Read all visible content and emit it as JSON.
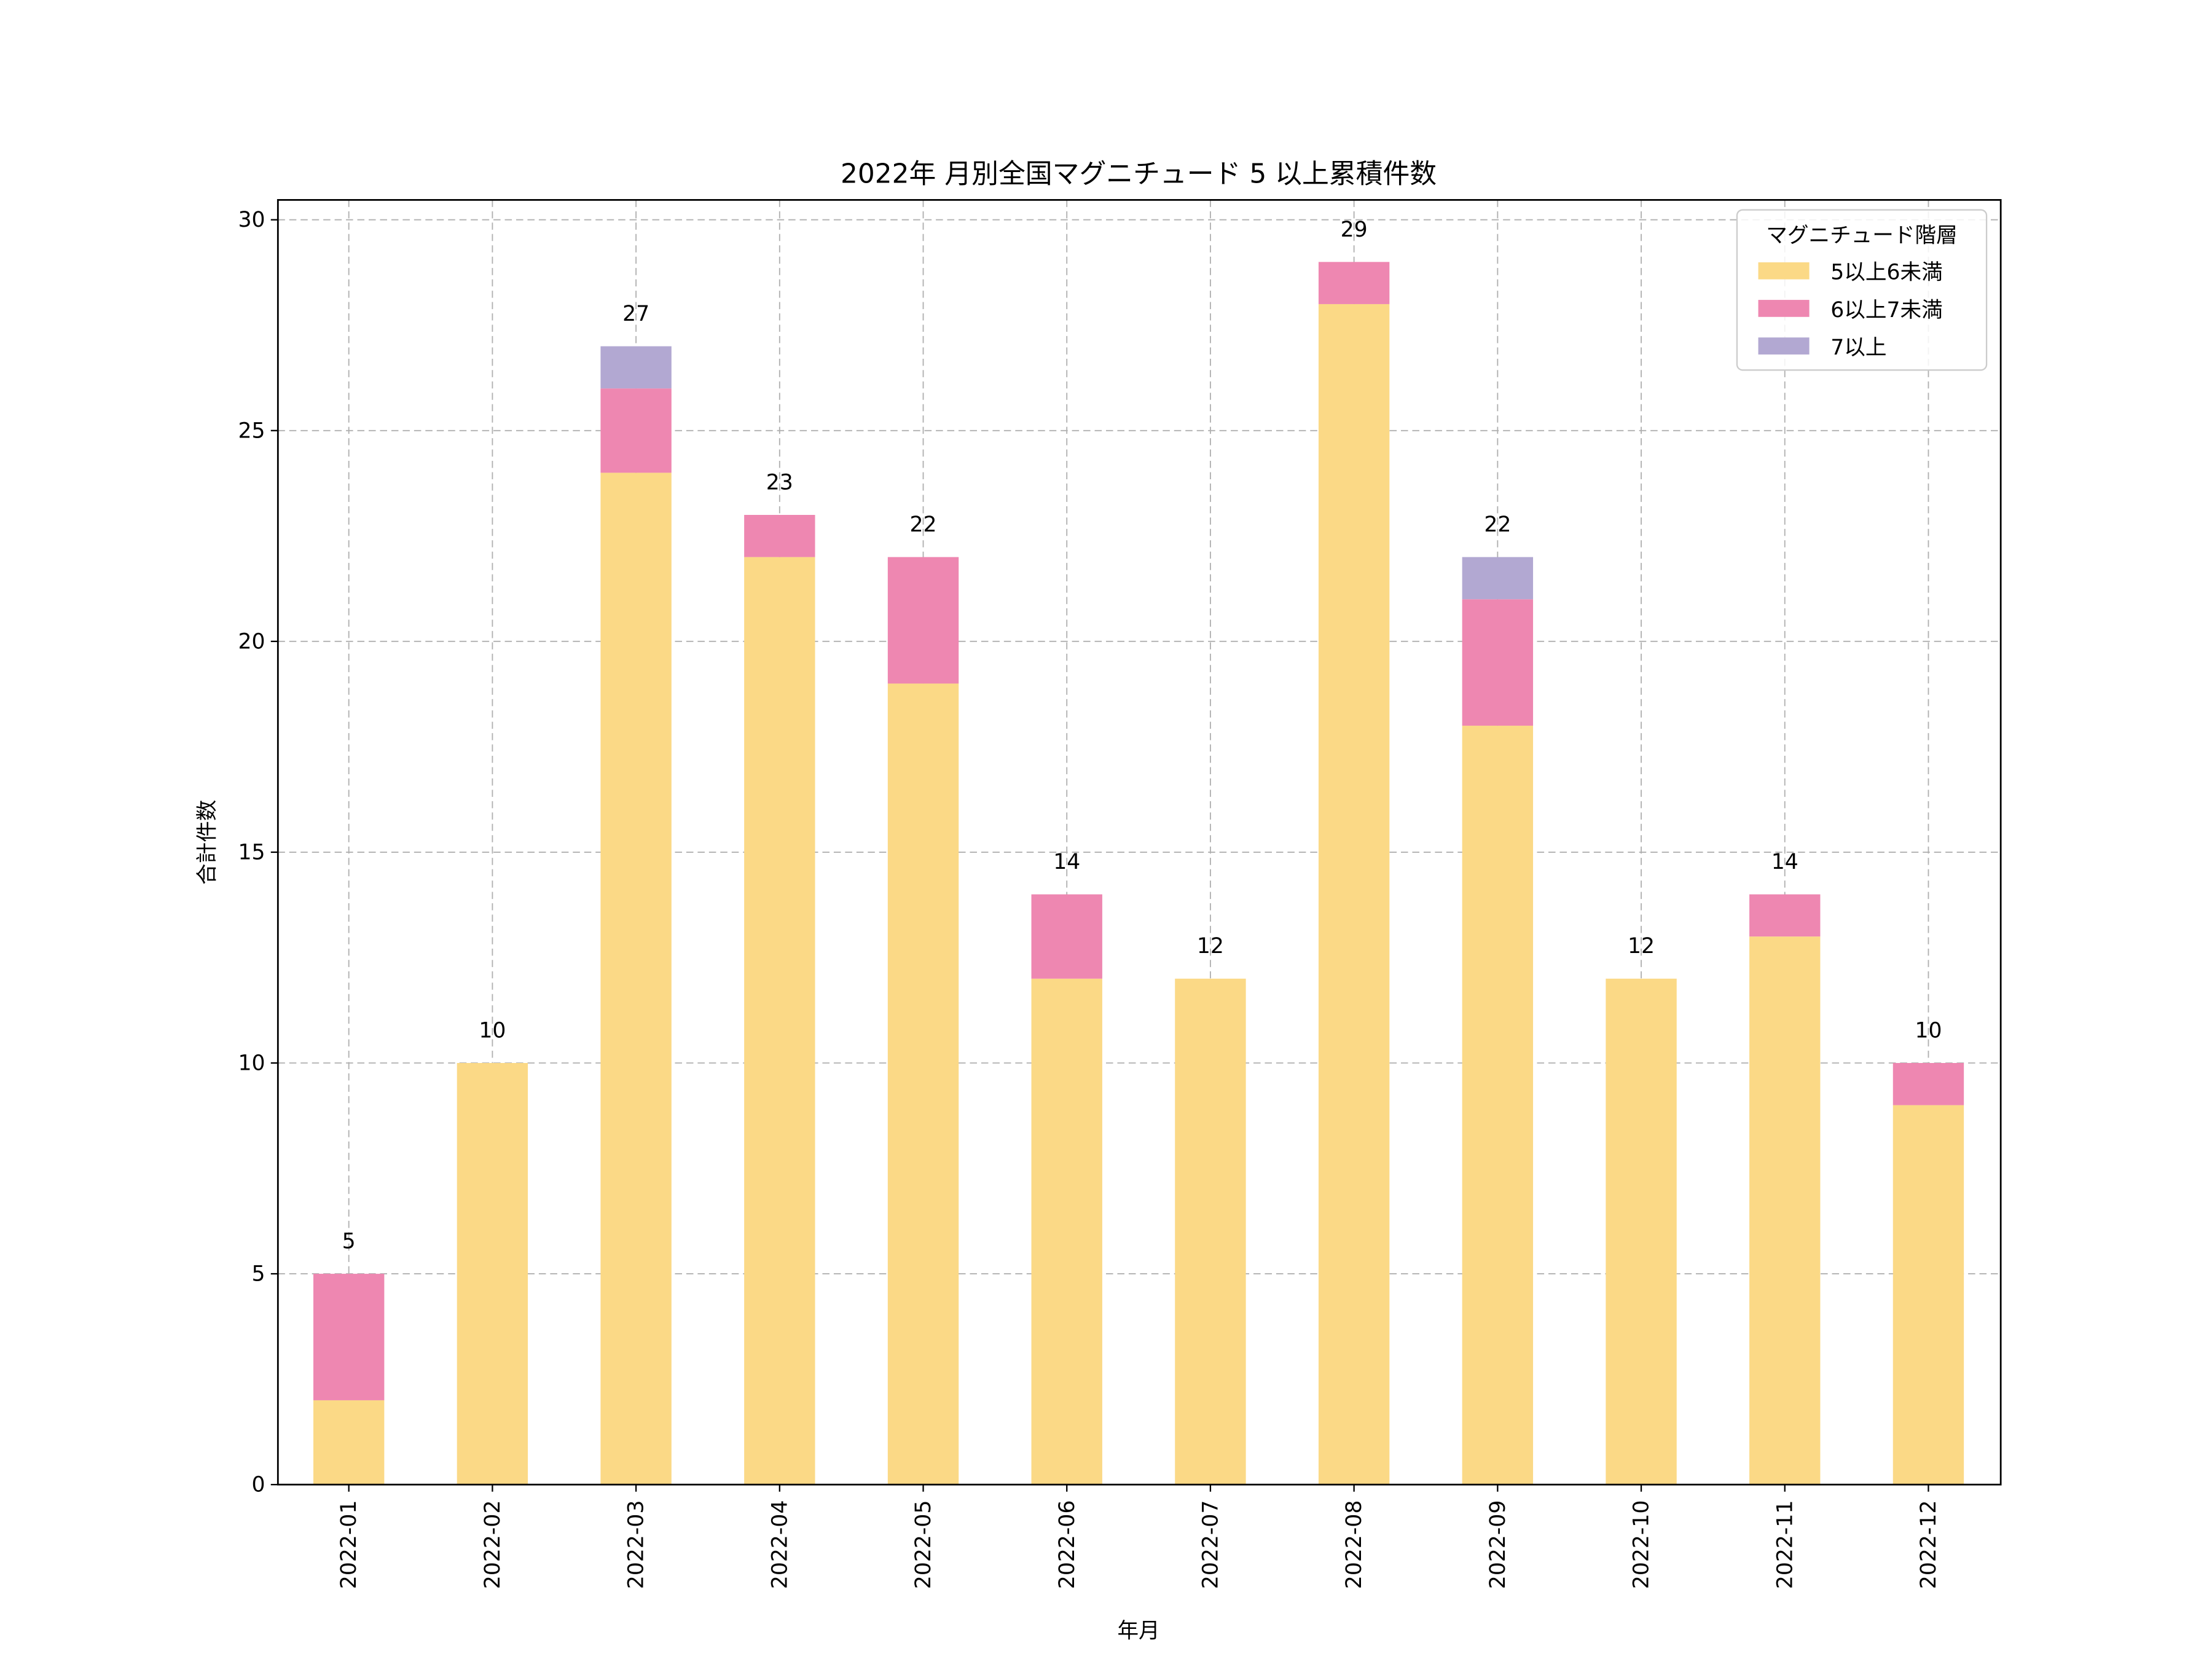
{
  "chart_data": {
    "type": "bar",
    "stacked": true,
    "title": "2022年 月別全国マグニチュード 5 以上累積件数",
    "xlabel": "年月",
    "ylabel": "合計件数",
    "ylim": [
      0,
      30
    ],
    "yticks": [
      0,
      5,
      10,
      15,
      20,
      25,
      30
    ],
    "grid": true,
    "legend": {
      "title": "マグニチュード階層",
      "placement": "top-right"
    },
    "categories": [
      "2022-01",
      "2022-02",
      "2022-03",
      "2022-04",
      "2022-05",
      "2022-06",
      "2022-07",
      "2022-08",
      "2022-09",
      "2022-10",
      "2022-11",
      "2022-12"
    ],
    "series": [
      {
        "name": "5以上6未満",
        "color": "#fbd986",
        "values": [
          2,
          10,
          24,
          22,
          19,
          12,
          12,
          28,
          18,
          12,
          13,
          9
        ]
      },
      {
        "name": "6以上7未満",
        "color": "#ee87b1",
        "values": [
          3,
          0,
          2,
          1,
          3,
          2,
          0,
          1,
          3,
          0,
          1,
          1
        ]
      },
      {
        "name": "7以上",
        "color": "#b2a8d2",
        "values": [
          0,
          0,
          1,
          0,
          0,
          0,
          0,
          0,
          1,
          0,
          0,
          0
        ]
      }
    ],
    "totals": [
      5,
      10,
      27,
      23,
      22,
      14,
      12,
      29,
      22,
      12,
      14,
      10
    ]
  }
}
